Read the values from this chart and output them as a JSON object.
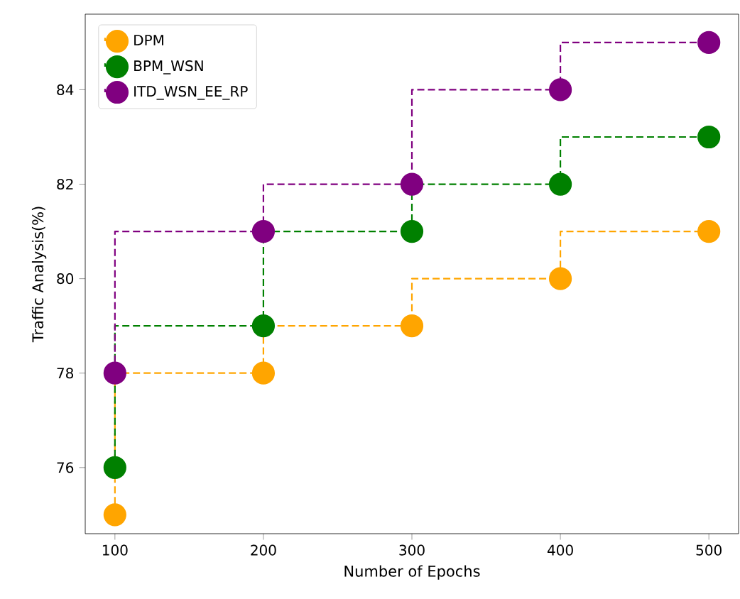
{
  "chart_data": {
    "type": "step",
    "xlabel": "Number of Epochs",
    "ylabel": "Traffic Analysis(%)",
    "x": [
      100,
      200,
      300,
      400,
      500
    ],
    "series": [
      {
        "name": "DPM",
        "color": "#ffa500",
        "values": [
          75,
          78,
          79,
          80,
          81
        ]
      },
      {
        "name": "BPM_WSN",
        "color": "#008000",
        "values": [
          76,
          79,
          81,
          82,
          83
        ]
      },
      {
        "name": "ITD_WSN_EE_RP",
        "color": "#800080",
        "values": [
          78,
          81,
          82,
          84,
          85
        ]
      }
    ],
    "xlim": [
      80,
      520
    ],
    "ylim": [
      74.6,
      85.6
    ],
    "xticks": [
      100,
      200,
      300,
      400,
      500
    ],
    "yticks": [
      76,
      78,
      80,
      82,
      84
    ],
    "legend": "top left",
    "marker": "circle",
    "line_style": "dashed",
    "grid": false
  }
}
